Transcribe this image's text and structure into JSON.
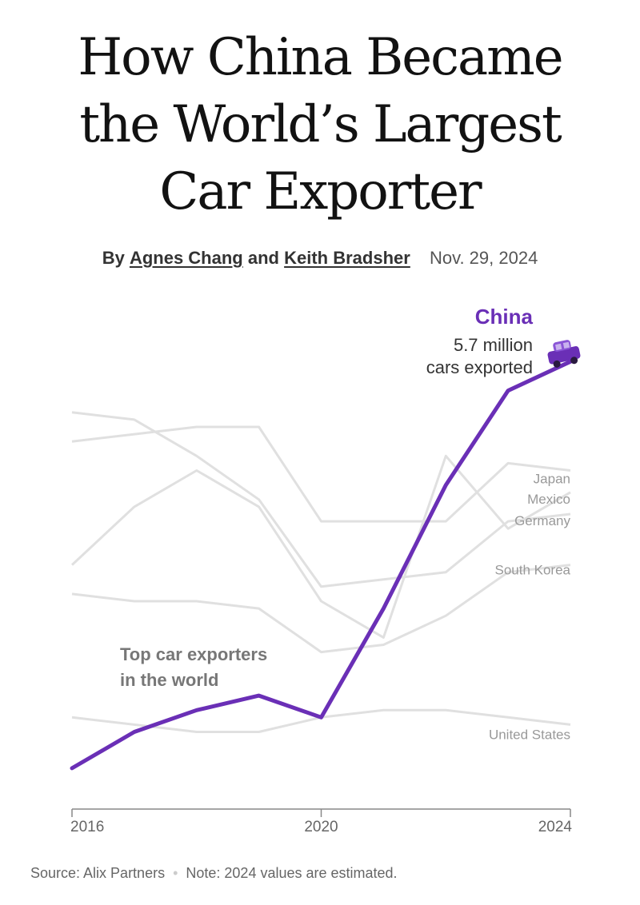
{
  "article": {
    "title_lines": [
      "How China Became",
      "the World’s Largest",
      "Car Exporter"
    ],
    "byline_prefix": "By",
    "author1": "Agnes Chang",
    "byline_and": "and",
    "author2": "Keith Bradsher",
    "date": "Nov. 29, 2024"
  },
  "footer": {
    "source": "Source: Alix Partners",
    "separator": "•",
    "note": "Note: 2024 values are estimated."
  },
  "chart_data": {
    "type": "line",
    "title": "",
    "annotation": "Top car exporters in the world",
    "annotation_lines": [
      "Top car exporters",
      "in the world"
    ],
    "x": [
      2016,
      2017,
      2018,
      2019,
      2020,
      2021,
      2022,
      2023,
      2024
    ],
    "xticks": [
      "2016",
      "2020",
      "2024"
    ],
    "ylim": [
      0,
      6
    ],
    "highlight": {
      "name": "China",
      "value_label_lines": [
        "5.7 million",
        "cars exported"
      ],
      "color": "#6a2fb6",
      "icon": "car-icon",
      "values": [
        0.1,
        0.6,
        0.9,
        1.1,
        0.8,
        2.3,
        4.0,
        5.3,
        5.7
      ]
    },
    "series": [
      {
        "name": "Japan",
        "values": [
          4.6,
          4.7,
          4.8,
          4.8,
          3.5,
          3.5,
          3.5,
          4.3,
          4.2
        ]
      },
      {
        "name": "Mexico",
        "values": [
          2.9,
          3.7,
          4.2,
          3.7,
          2.4,
          1.9,
          4.4,
          3.4,
          3.9
        ]
      },
      {
        "name": "Germany",
        "values": [
          5.0,
          4.9,
          4.4,
          3.8,
          2.6,
          2.7,
          2.8,
          3.5,
          3.6
        ]
      },
      {
        "name": "South Korea",
        "values": [
          2.5,
          2.4,
          2.4,
          2.3,
          1.7,
          1.8,
          2.2,
          2.8,
          2.9
        ]
      },
      {
        "name": "United States",
        "values": [
          0.8,
          0.7,
          0.6,
          0.6,
          0.8,
          0.9,
          0.9,
          0.8,
          0.7
        ]
      }
    ],
    "colors": {
      "highlight": "#6a2fb6",
      "others": "#e0e0e0",
      "label": "#999999",
      "axis": "#888888"
    }
  }
}
